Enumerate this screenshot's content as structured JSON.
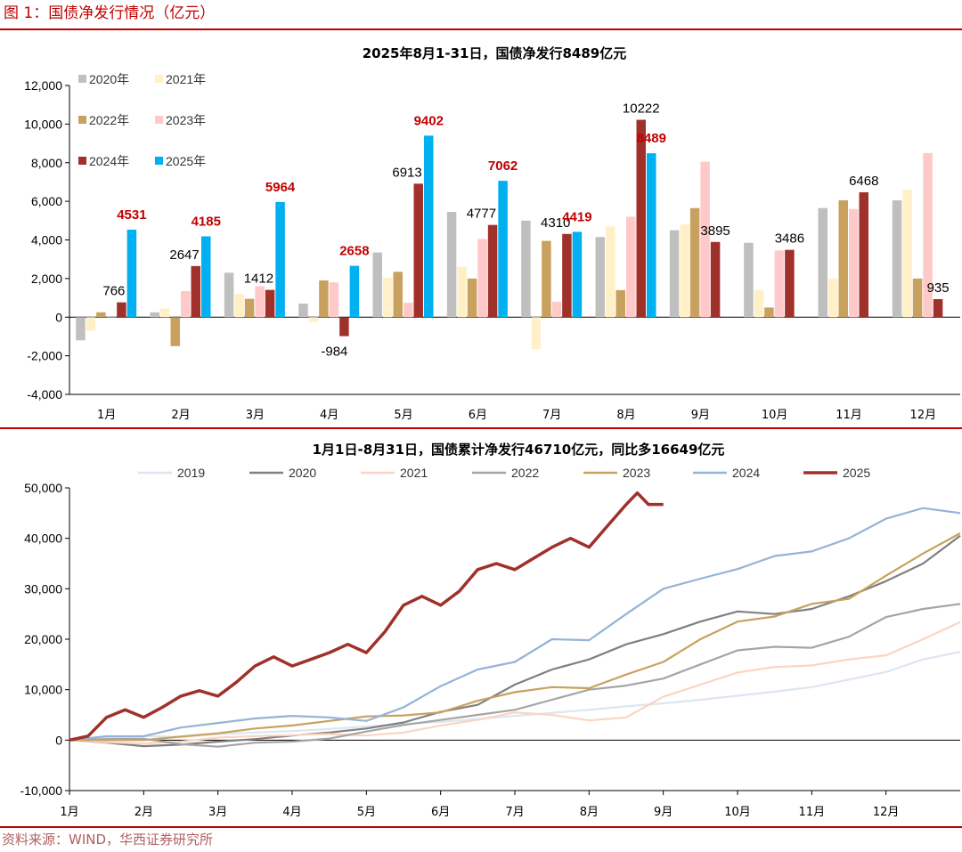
{
  "header": {
    "figure_title": "图 1：国债净发行情况（亿元）"
  },
  "footer": {
    "source": "资料来源：WIND，华西证券研究所"
  },
  "colors": {
    "rule": "#c00000",
    "2019": "#dde6f0",
    "2020": "#808080",
    "2021": "#fbd5c2",
    "2022": "#a5a5a5",
    "2023": "#c9a15e",
    "2024": "#95b3d7",
    "2025": "#a0312a"
  },
  "chart_data": [
    {
      "type": "bar",
      "title": "2025年8月1-31日，国债净发行8489亿元",
      "categories": [
        "1月",
        "2月",
        "3月",
        "4月",
        "5月",
        "6月",
        "7月",
        "8月",
        "9月",
        "10月",
        "11月",
        "12月"
      ],
      "ylim": [
        -4000,
        12000
      ],
      "yticks": [
        -4000,
        -2000,
        0,
        2000,
        4000,
        6000,
        8000,
        10000,
        12000
      ],
      "ytick_labels": [
        "-4,000",
        "-2,000",
        "0",
        "2,000",
        "4,000",
        "6,000",
        "8,000",
        "10,000",
        "12,000"
      ],
      "legend": "top-left",
      "series": [
        {
          "name": "2020年",
          "color": "#bfbfbf",
          "values": [
            -1200,
            250,
            2300,
            700,
            3350,
            5450,
            5000,
            4150,
            4500,
            3850,
            5650,
            6050
          ]
        },
        {
          "name": "2021年",
          "color": "#fff0c8",
          "values": [
            -700,
            450,
            1200,
            -250,
            2050,
            2600,
            -1650,
            4700,
            4800,
            1400,
            2000,
            6600
          ]
        },
        {
          "name": "2022年",
          "color": "#c9a15e",
          "values": [
            250,
            -1500,
            950,
            1900,
            2350,
            2000,
            3950,
            1400,
            5650,
            500,
            6050,
            2000
          ]
        },
        {
          "name": "2023年",
          "color": "#ffc9c9",
          "values": [
            0,
            1350,
            1600,
            1800,
            750,
            4050,
            800,
            5200,
            8050,
            3450,
            5600,
            8500
          ]
        },
        {
          "name": "2024年",
          "color": "#a0312a",
          "values": [
            766,
            2647,
            1412,
            -984,
            6913,
            4777,
            4310,
            10222,
            3895,
            3486,
            6468,
            935
          ]
        },
        {
          "name": "2025年",
          "color": "#00b0f0",
          "values": [
            4531,
            4185,
            5964,
            2658,
            9402,
            7062,
            4419,
            8489,
            null,
            null,
            null,
            null
          ]
        }
      ],
      "labels_2024": [
        "766",
        "2647",
        "1412",
        "-984",
        "6913",
        "4777",
        "4310",
        "10222",
        "3895",
        "3486",
        "6468",
        "935"
      ],
      "labels_2025": [
        "4531",
        "4185",
        "5964",
        "2658",
        "9402",
        "7062",
        "4419",
        "8489"
      ]
    },
    {
      "type": "line",
      "title": "1月1日-8月31日，国债累计净发行46710亿元，同比多16649亿元",
      "xticks": [
        "1月",
        "2月",
        "3月",
        "4月",
        "5月",
        "6月",
        "7月",
        "8月",
        "9月",
        "10月",
        "11月",
        "12月"
      ],
      "ylim": [
        -10000,
        50000
      ],
      "yticks": [
        -10000,
        0,
        10000,
        20000,
        30000,
        40000,
        50000
      ],
      "ytick_labels": [
        "-10,000",
        "0",
        "10,000",
        "20,000",
        "30,000",
        "40,000",
        "50,000"
      ],
      "legend": "top",
      "series": [
        {
          "name": "2019",
          "color": "#dde6f0",
          "points": [
            [
              0,
              0
            ],
            [
              0.5,
              500
            ],
            [
              1,
              800
            ],
            [
              1.5,
              600
            ],
            [
              2,
              1200
            ],
            [
              2.5,
              1500
            ],
            [
              3,
              1800
            ],
            [
              3.5,
              2200
            ],
            [
              4,
              2700
            ],
            [
              4.5,
              3200
            ],
            [
              5,
              3600
            ],
            [
              5.5,
              4200
            ],
            [
              6,
              4800
            ],
            [
              6.5,
              5400
            ],
            [
              7,
              6000
            ],
            [
              7.5,
              6700
            ],
            [
              8,
              7300
            ],
            [
              8.5,
              8000
            ],
            [
              9,
              8800
            ],
            [
              9.5,
              9600
            ],
            [
              10,
              10500
            ],
            [
              10.5,
              12000
            ],
            [
              11,
              13500
            ],
            [
              11.5,
              16000
            ],
            [
              12,
              17500
            ]
          ]
        },
        {
          "name": "2020",
          "color": "#808080",
          "points": [
            [
              0,
              0
            ],
            [
              0.5,
              -500
            ],
            [
              1,
              -1200
            ],
            [
              1.5,
              -900
            ],
            [
              2,
              -300
            ],
            [
              2.5,
              200
            ],
            [
              3,
              900
            ],
            [
              3.5,
              1500
            ],
            [
              4,
              2300
            ],
            [
              4.5,
              3500
            ],
            [
              5,
              5600
            ],
            [
              5.5,
              7000
            ],
            [
              6,
              11000
            ],
            [
              6.5,
              14000
            ],
            [
              7,
              16000
            ],
            [
              7.5,
              19000
            ],
            [
              8,
              21000
            ],
            [
              8.5,
              23500
            ],
            [
              9,
              25500
            ],
            [
              9.5,
              25000
            ],
            [
              10,
              26000
            ],
            [
              10.5,
              28500
            ],
            [
              11,
              31500
            ],
            [
              11.5,
              35000
            ],
            [
              12,
              40500
            ]
          ]
        },
        {
          "name": "2021",
          "color": "#fbd5c2",
          "points": [
            [
              0,
              0
            ],
            [
              0.5,
              -400
            ],
            [
              1,
              -700
            ],
            [
              1.5,
              -300
            ],
            [
              2,
              500
            ],
            [
              2.5,
              800
            ],
            [
              3,
              1000
            ],
            [
              3.5,
              1200
            ],
            [
              4,
              900
            ],
            [
              4.5,
              1500
            ],
            [
              5,
              2900
            ],
            [
              5.5,
              4000
            ],
            [
              6,
              5500
            ],
            [
              6.5,
              5000
            ],
            [
              7,
              3900
            ],
            [
              7.5,
              4500
            ],
            [
              8,
              8600
            ],
            [
              8.5,
              11000
            ],
            [
              9,
              13400
            ],
            [
              9.5,
              14500
            ],
            [
              10,
              14800
            ],
            [
              10.5,
              16000
            ],
            [
              11,
              16800
            ],
            [
              11.5,
              20000
            ],
            [
              12,
              23400
            ]
          ]
        },
        {
          "name": "2022",
          "color": "#a5a5a5",
          "points": [
            [
              0,
              0
            ],
            [
              0.5,
              200
            ],
            [
              1,
              250
            ],
            [
              1.5,
              -800
            ],
            [
              2,
              -1300
            ],
            [
              2.5,
              -500
            ],
            [
              3,
              -300
            ],
            [
              3.5,
              300
            ],
            [
              4,
              1700
            ],
            [
              4.5,
              3000
            ],
            [
              5,
              4000
            ],
            [
              5.5,
              5000
            ],
            [
              6,
              6000
            ],
            [
              6.5,
              8000
            ],
            [
              7,
              10000
            ],
            [
              7.5,
              10800
            ],
            [
              8,
              12200
            ],
            [
              8.5,
              15000
            ],
            [
              9,
              17800
            ],
            [
              9.5,
              18500
            ],
            [
              10,
              18300
            ],
            [
              10.5,
              20500
            ],
            [
              11,
              24400
            ],
            [
              11.5,
              26000
            ],
            [
              12,
              27000
            ]
          ]
        },
        {
          "name": "2023",
          "color": "#c9a15e",
          "points": [
            [
              0,
              0
            ],
            [
              0.5,
              0
            ],
            [
              1,
              0
            ],
            [
              1.5,
              700
            ],
            [
              2,
              1350
            ],
            [
              2.5,
              2300
            ],
            [
              3,
              2900
            ],
            [
              3.5,
              3800
            ],
            [
              4,
              4700
            ],
            [
              4.5,
              4900
            ],
            [
              5,
              5500
            ],
            [
              5.5,
              7800
            ],
            [
              6,
              9500
            ],
            [
              6.5,
              10500
            ],
            [
              7,
              10300
            ],
            [
              7.5,
              13000
            ],
            [
              8,
              15500
            ],
            [
              8.5,
              20000
            ],
            [
              9,
              23500
            ],
            [
              9.5,
              24500
            ],
            [
              10,
              27000
            ],
            [
              10.5,
              28000
            ],
            [
              11,
              32600
            ],
            [
              11.5,
              37000
            ],
            [
              12,
              41000
            ]
          ]
        },
        {
          "name": "2024",
          "color": "#95b3d7",
          "points": [
            [
              0,
              0
            ],
            [
              0.5,
              766
            ],
            [
              1,
              766
            ],
            [
              1.5,
              2500
            ],
            [
              2,
              3400
            ],
            [
              2.5,
              4300
            ],
            [
              3,
              4800
            ],
            [
              3.5,
              4500
            ],
            [
              4,
              3800
            ],
            [
              4.5,
              6500
            ],
            [
              5,
              10700
            ],
            [
              5.5,
              14000
            ],
            [
              6,
              15500
            ],
            [
              6.5,
              20000
            ],
            [
              7,
              19800
            ],
            [
              7.5,
              25000
            ],
            [
              8,
              30000
            ],
            [
              8.5,
              32000
            ],
            [
              9,
              33900
            ],
            [
              9.5,
              36500
            ],
            [
              10,
              37400
            ],
            [
              10.5,
              40000
            ],
            [
              11,
              43900
            ],
            [
              11.5,
              46000
            ],
            [
              12,
              45000
            ]
          ]
        },
        {
          "name": "2025",
          "color": "#a0312a",
          "points": [
            [
              0,
              0
            ],
            [
              0.25,
              800
            ],
            [
              0.5,
              4531
            ],
            [
              0.75,
              6000
            ],
            [
              1,
              4531
            ],
            [
              1.25,
              6500
            ],
            [
              1.5,
              8716
            ],
            [
              1.75,
              9800
            ],
            [
              2,
              8716
            ],
            [
              2.25,
              11500
            ],
            [
              2.5,
              14680
            ],
            [
              2.75,
              16500
            ],
            [
              3,
              14680
            ],
            [
              3.25,
              16000
            ],
            [
              3.5,
              17338
            ],
            [
              3.75,
              19000
            ],
            [
              4,
              17338
            ],
            [
              4.25,
              21500
            ],
            [
              4.5,
              26740
            ],
            [
              4.75,
              28500
            ],
            [
              5,
              26740
            ],
            [
              5.25,
              29500
            ],
            [
              5.5,
              33802
            ],
            [
              5.75,
              35000
            ],
            [
              6,
              33802
            ],
            [
              6.25,
              36000
            ],
            [
              6.5,
              38221
            ],
            [
              6.75,
              40000
            ],
            [
              7,
              38221
            ],
            [
              7.25,
              42500
            ],
            [
              7.5,
              46710
            ],
            [
              7.65,
              49000
            ],
            [
              7.8,
              46710
            ],
            [
              8,
              46710
            ]
          ]
        }
      ]
    }
  ]
}
